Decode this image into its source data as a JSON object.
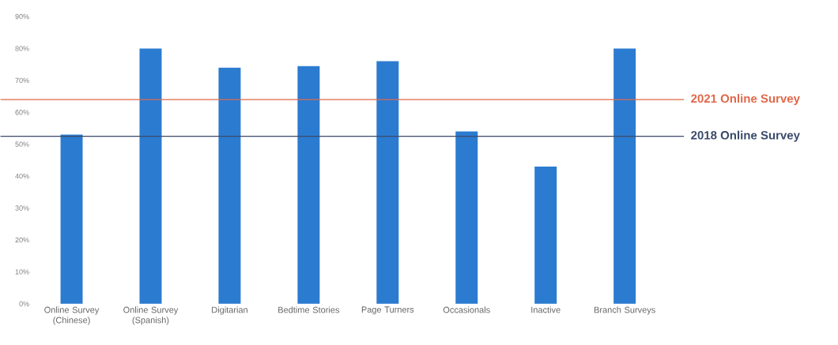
{
  "chart_data": {
    "type": "bar",
    "categories": [
      "Online Survey (Chinese)",
      "Online Survey (Spanish)",
      "Digitarian",
      "Bedtime Stories",
      "Page Turners",
      "Occasionals",
      "Inactive",
      "Branch Surveys"
    ],
    "values": [
      53,
      80,
      74,
      74.5,
      76,
      54,
      43,
      80
    ],
    "color": "#2b7bd0",
    "ylim": [
      0,
      90
    ],
    "yticks": [
      {
        "value": 0,
        "label": "0%"
      },
      {
        "value": 10,
        "label": "10%"
      },
      {
        "value": 20,
        "label": "20%"
      },
      {
        "value": 30,
        "label": "30%"
      },
      {
        "value": 40,
        "label": "40%"
      },
      {
        "value": 50,
        "label": "50%"
      },
      {
        "value": 60,
        "label": "60%"
      },
      {
        "value": 70,
        "label": "70%"
      },
      {
        "value": 80,
        "label": "80%"
      },
      {
        "value": 90,
        "label": "90%"
      }
    ],
    "ref_lines": [
      {
        "axis": "y",
        "value": 64,
        "label": "2021 Online Survey",
        "color": "#e0684a"
      },
      {
        "axis": "y",
        "value": 52.5,
        "label": "2018 Online Survey",
        "color": "#3a4a6a"
      }
    ]
  }
}
